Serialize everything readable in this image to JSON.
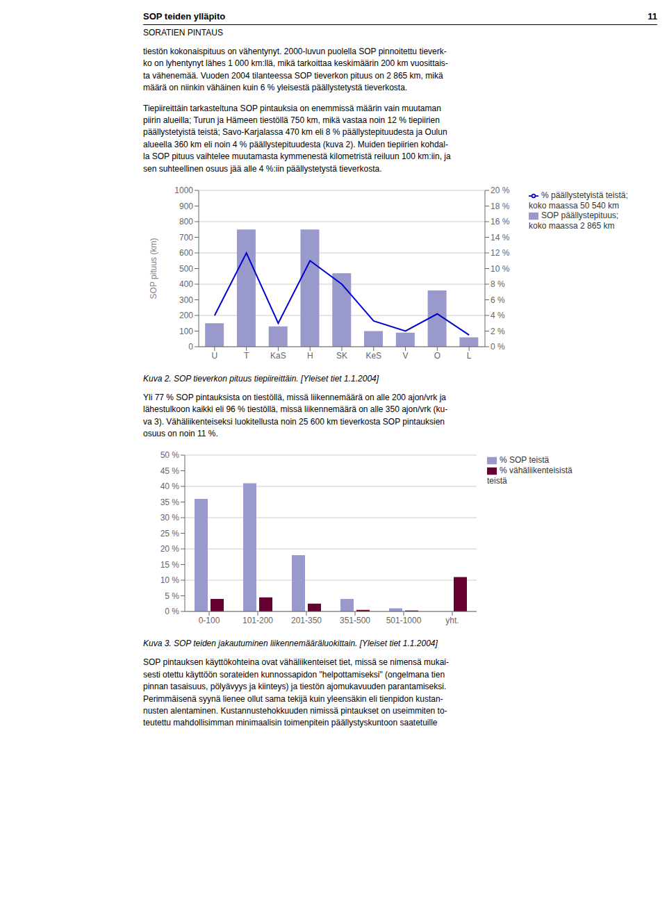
{
  "annotations": [
    "SOP teiden ylläpito",
    "11",
    "SORATIEN PINTAUS",
    "tiestön kokonaispituus on vähentynyt. 2000-luvun puolella SOP pinnoitettu tieverk-\nko on lyhentynyt lähes 1 000 km:llä, mikä tarkoittaa keskimäärin 200 km vuosittais-\nta vähenemää. Vuoden 2004 tilanteessa SOP tieverkon pituus on 2 865 km, mikä\nmäärä on niinkin vähäinen kuin 6 % yleisestä päällystetystä tieverkosta.",
    "Tiepiireittäin tarkasteltuna SOP pintauksia on enemmissä määrin vain muutaman\npiirin alueilla; Turun ja Hämeen tiestöllä 750 km, mikä vastaa noin 12 % tiepiirien\npäällystetyistä teistä; Savo-Karjalassa 470 km eli 8 % päällystepituudesta ja Oulun\nalueella 360 km eli noin 4 % päällystepituudesta (kuva 2). Muiden tiepiirien kohdal-\nla SOP pituus vaihtelee muutamasta kymmenestä kilometristä reiluun 100 km:iin, ja\nsen suhteellinen osuus jää alle 4 %:iin päällystetystä tieverkosta.",
    "Yli 77 % SOP pintauksista on tiestöllä, missä liikennemäärä on alle 200 ajon/vrk ja\nlähestulkoon kaikki eli 96 % tiestöllä, missä liikennemäärä on alle 350 ajon/vrk (ku-\nva 3). Vähäliikenteiseksi luokitellusta noin 25 600 km tieverkosta SOP pintauksien\nosuus on noin 11 %.",
    "SOP pintauksen käyttökohteina ovat vähäliikenteiset tiet, missä se nimensä mukai-\nsesti otettu käyttöön sorateiden kunnossapidon \"helpottamiseksi\" (ongelmana tien\npinnan tasaisuus, pölyävyys ja kiinteys) ja tiestön ajomukavuuden parantamiseksi.\nPerimmäisenä syynä lienee ollut sama tekijä kuin yleensäkin eli tienpidon kustan-\nnusten alentaminen. Kustannustehokkuuden nimissä pintaukset on useimmiten to-\nteutettu mahdollisimman minimaalisin toimenpitein päällystyskuntoon saatetuille"
  ],
  "chart_data": [
    {
      "type": "bar",
      "title": "Kuva 2.     SOP tieverkon pituus tiepiireittäin. [Yleiset tiet 1.1.2004]",
      "ylabel": "SOP pituus (km)",
      "categories": [
        "U",
        "T",
        "KaS",
        "H",
        "SK",
        "KeS",
        "V",
        "O",
        "L"
      ],
      "series": [
        {
          "name": "SOP päällystepituus;\nkoko maassa 2 865 km",
          "type": "bar",
          "color": "#9999cc",
          "values": [
            150,
            750,
            130,
            750,
            470,
            100,
            90,
            360,
            60
          ]
        },
        {
          "name": "% päällystetyistä teistä;\nkoko maassa 50 540 km",
          "type": "line",
          "color": "#0000cc",
          "axis": "y2",
          "values": [
            4,
            12,
            3,
            11,
            8,
            3.3,
            2,
            4.2,
            1.5
          ]
        }
      ],
      "ylim": [
        0,
        1000
      ],
      "yticks": [
        0,
        100,
        200,
        300,
        400,
        500,
        600,
        700,
        800,
        900,
        1000
      ],
      "y2lim": [
        0,
        20
      ],
      "y2ticks": [
        {
          "value": 0,
          "label": "0 %"
        },
        {
          "value": 2,
          "label": "2 %"
        },
        {
          "value": 4,
          "label": "4 %"
        },
        {
          "value": 6,
          "label": "6 %"
        },
        {
          "value": 8,
          "label": "8 %"
        },
        {
          "value": 10,
          "label": "10 %"
        },
        {
          "value": 12,
          "label": "12 %"
        },
        {
          "value": 14,
          "label": "14 %"
        },
        {
          "value": 16,
          "label": "16 %"
        },
        {
          "value": 18,
          "label": "18 %"
        },
        {
          "value": 20,
          "label": "20 %"
        }
      ],
      "grid": true,
      "legend": "right"
    },
    {
      "type": "bar",
      "title": "Kuva 3.     SOP teiden jakautuminen liikennemääräluokittain. [Yleiset tiet 1.1.2004]",
      "categories": [
        "0-100",
        "101-200",
        "201-350",
        "351-500",
        "501-1000",
        "yht."
      ],
      "series": [
        {
          "name": "% SOP teistä",
          "color": "#9999cc",
          "values": [
            36,
            41,
            18,
            4,
            1,
            0
          ]
        },
        {
          "name": "% vähäliikenteisistä\nteistä",
          "color": "#660033",
          "values": [
            4,
            4.5,
            2.5,
            0.5,
            0.3,
            11
          ]
        }
      ],
      "ylim": [
        0,
        50
      ],
      "yticks": [
        {
          "value": 0,
          "label": "0 %"
        },
        {
          "value": 5,
          "label": "5 %"
        },
        {
          "value": 10,
          "label": "10 %"
        },
        {
          "value": 15,
          "label": "15 %"
        },
        {
          "value": 20,
          "label": "20 %"
        },
        {
          "value": 25,
          "label": "25 %"
        },
        {
          "value": 30,
          "label": "30 %"
        },
        {
          "value": 35,
          "label": "35 %"
        },
        {
          "value": 40,
          "label": "40 %"
        },
        {
          "value": 45,
          "label": "45 %"
        },
        {
          "value": 50,
          "label": "50 %"
        }
      ],
      "grid": true,
      "legend": "right"
    }
  ]
}
